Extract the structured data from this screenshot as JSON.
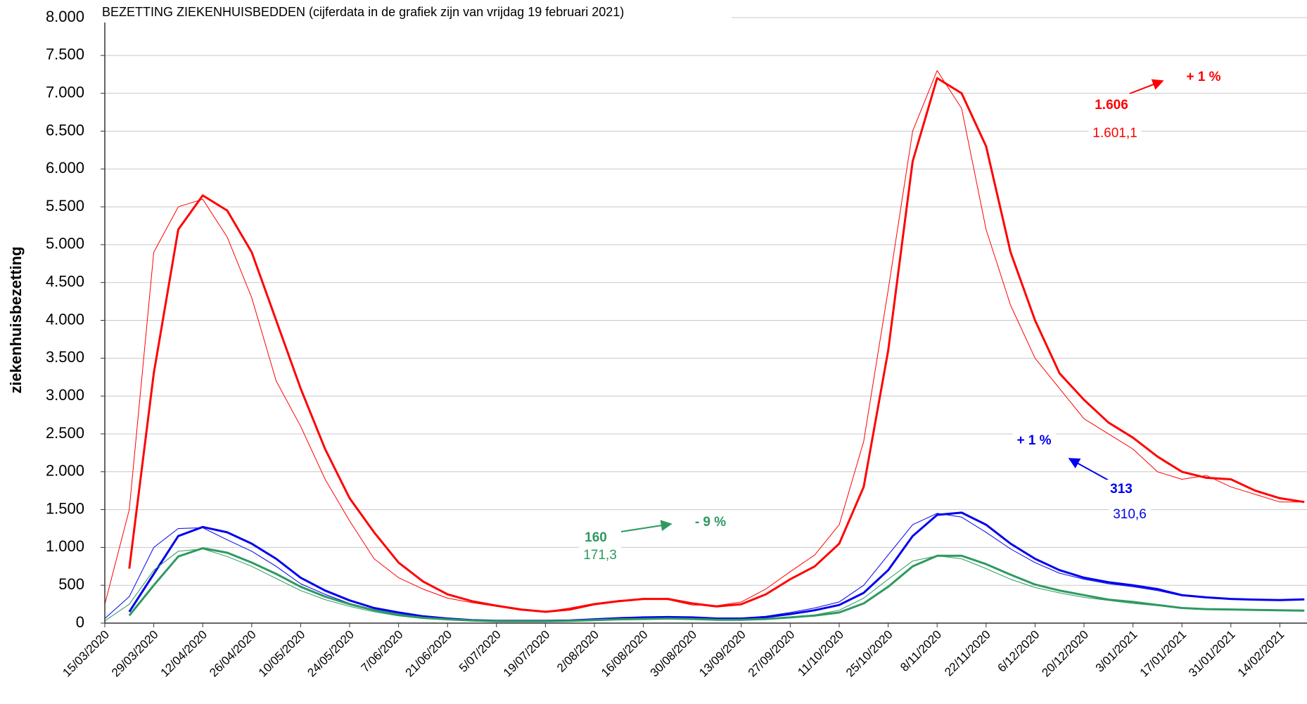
{
  "chart_data": {
    "type": "line",
    "title": "BEZETTING ZIEKENHUISBEDDEN (cijferdata in de grafiek zijn van vrijdag 19 februari 2021)",
    "y_label": "ziekenhuisbezetting",
    "x": [
      "15/03/2020",
      null,
      "29/03/2020",
      null,
      "12/04/2020",
      null,
      "26/04/2020",
      null,
      "10/05/2020",
      null,
      "24/05/2020",
      null,
      "7/06/2020",
      null,
      "21/06/2020",
      null,
      "5/07/2020",
      null,
      "19/07/2020",
      null,
      "2/08/2020",
      null,
      "16/08/2020",
      null,
      "30/08/2020",
      null,
      "13/09/2020",
      null,
      "27/09/2020",
      null,
      "11/10/2020",
      null,
      "25/10/2020",
      null,
      "8/11/2020",
      null,
      "22/11/2020",
      null,
      "6/12/2020",
      null,
      "20/12/2020",
      null,
      "3/01/2021",
      null,
      "17/01/2021",
      null,
      "31/01/2021",
      null,
      "14/02/2021",
      null
    ],
    "series": [
      {
        "color": "#ff0000",
        "line_width": 1,
        "values": [
          250,
          1500,
          4900,
          5500,
          5600,
          5100,
          4300,
          3200,
          2600,
          1900,
          1350,
          850,
          600,
          450,
          330,
          270,
          220,
          170,
          150,
          200,
          260,
          300,
          320,
          310,
          240,
          230,
          280,
          450,
          680,
          900,
          1300,
          2400,
          4400,
          6500,
          7300,
          6800,
          5200,
          4200,
          3500,
          3100,
          2700,
          2500,
          2300,
          2000,
          1900,
          1950,
          1800,
          1700,
          1600,
          1600
        ]
      },
      {
        "color": "#ff0000",
        "line_width": 3,
        "values": [
          null,
          720,
          3300,
          5200,
          5650,
          5450,
          4900,
          4000,
          3100,
          2300,
          1650,
          1200,
          800,
          550,
          380,
          290,
          230,
          180,
          150,
          180,
          250,
          290,
          320,
          320,
          260,
          220,
          250,
          380,
          580,
          750,
          1050,
          1800,
          3600,
          6100,
          7200,
          7000,
          6300,
          4900,
          4000,
          3300,
          2950,
          2650,
          2450,
          2200,
          2000,
          1920,
          1900,
          1750,
          1650,
          1600
        ]
      },
      {
        "color": "#0000ee",
        "line_width": 1,
        "values": [
          60,
          350,
          1000,
          1250,
          1260,
          1100,
          950,
          750,
          520,
          380,
          260,
          180,
          120,
          80,
          55,
          40,
          30,
          30,
          30,
          40,
          55,
          70,
          80,
          85,
          75,
          60,
          65,
          90,
          140,
          200,
          280,
          500,
          900,
          1300,
          1450,
          1400,
          1200,
          980,
          800,
          660,
          580,
          520,
          480,
          430,
          360,
          340,
          320,
          310,
          300,
          310
        ]
      },
      {
        "color": "#0000ee",
        "line_width": 3,
        "values": [
          null,
          150,
          650,
          1150,
          1270,
          1200,
          1050,
          850,
          600,
          430,
          300,
          200,
          140,
          90,
          60,
          40,
          30,
          30,
          30,
          35,
          50,
          65,
          75,
          80,
          75,
          60,
          60,
          80,
          120,
          170,
          240,
          400,
          700,
          1150,
          1430,
          1460,
          1300,
          1050,
          850,
          700,
          600,
          540,
          500,
          450,
          370,
          340,
          320,
          310,
          305,
          313
        ]
      },
      {
        "color": "#2e9960",
        "line_width": 1,
        "values": [
          30,
          250,
          700,
          950,
          980,
          880,
          750,
          590,
          430,
          310,
          220,
          150,
          95,
          60,
          45,
          32,
          25,
          25,
          25,
          30,
          40,
          50,
          55,
          60,
          55,
          45,
          45,
          60,
          80,
          110,
          170,
          330,
          580,
          820,
          890,
          850,
          720,
          580,
          470,
          400,
          340,
          300,
          260,
          230,
          195,
          180,
          175,
          170,
          165,
          170
        ]
      },
      {
        "color": "#2e9960",
        "line_width": 3,
        "values": [
          null,
          100,
          500,
          880,
          990,
          930,
          800,
          650,
          480,
          350,
          250,
          170,
          110,
          70,
          50,
          35,
          25,
          25,
          25,
          30,
          40,
          50,
          55,
          60,
          55,
          45,
          45,
          55,
          75,
          100,
          140,
          260,
          480,
          750,
          890,
          890,
          780,
          640,
          510,
          430,
          370,
          310,
          280,
          240,
          200,
          185,
          180,
          175,
          170,
          165
        ]
      }
    ],
    "ylim": [
      0,
      8000
    ],
    "yticks": [
      {
        "value": 0,
        "label": "0"
      },
      {
        "value": 500,
        "label": "500"
      },
      {
        "value": 1000,
        "label": "1.000"
      },
      {
        "value": 1500,
        "label": "1.500"
      },
      {
        "value": 2000,
        "label": "2.000"
      },
      {
        "value": 2500,
        "label": "2.500"
      },
      {
        "value": 3000,
        "label": "3.000"
      },
      {
        "value": 3500,
        "label": "3.500"
      },
      {
        "value": 4000,
        "label": "4.000"
      },
      {
        "value": 4500,
        "label": "4.500"
      },
      {
        "value": 5000,
        "label": "5.000"
      },
      {
        "value": 5500,
        "label": "5.500"
      },
      {
        "value": 6000,
        "label": "6.000"
      },
      {
        "value": 6500,
        "label": "6.500"
      },
      {
        "value": 7000,
        "label": "7.000"
      },
      {
        "value": 7500,
        "label": "7.500"
      },
      {
        "value": 8000,
        "label": "8.000"
      }
    ],
    "grid": true,
    "annotations": [
      {
        "text": "1.606",
        "color": "#ff0000",
        "bold": true
      },
      {
        "text": "1.601,1",
        "color": "#ff0000",
        "bold": false
      },
      {
        "text": "+ 1 %",
        "color": "#ff0000",
        "bold": true
      },
      {
        "text": "313",
        "color": "#0000ee",
        "bold": true
      },
      {
        "text": "310,6",
        "color": "#0000ee",
        "bold": false
      },
      {
        "text": "+ 1 %",
        "color": "#0000ee",
        "bold": true
      },
      {
        "text": "160",
        "color": "#2e9960",
        "bold": true
      },
      {
        "text": "171,3",
        "color": "#2e9960",
        "bold": false
      },
      {
        "text": "- 9 %",
        "color": "#2e9960",
        "bold": true
      }
    ]
  }
}
